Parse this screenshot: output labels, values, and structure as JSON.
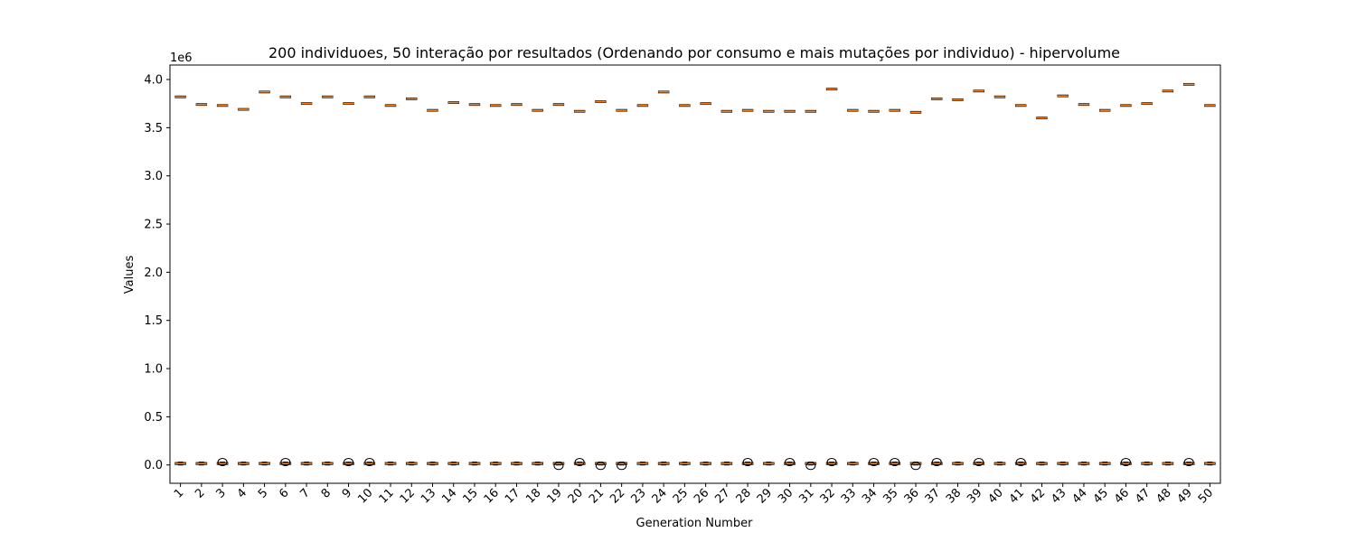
{
  "chart_data": {
    "type": "boxplot",
    "title": "200 individuoes, 50 interação por resultados (Ordenando por consumo e mais mutações por individuo) - hipervolume",
    "xlabel": "Generation Number",
    "ylabel": "Values",
    "y_scale_label": "1e6",
    "y_multiplier": 1000000,
    "ylim": [
      -0.19,
      4.15
    ],
    "y_ticks": [
      "0.0",
      "0.5",
      "1.0",
      "1.5",
      "2.0",
      "2.5",
      "3.0",
      "3.5",
      "4.0"
    ],
    "x_tick_rotation": -45,
    "categories": [
      "1",
      "2",
      "3",
      "4",
      "5",
      "6",
      "7",
      "8",
      "9",
      "10",
      "11",
      "12",
      "13",
      "14",
      "15",
      "16",
      "17",
      "18",
      "19",
      "20",
      "21",
      "22",
      "23",
      "24",
      "25",
      "26",
      "27",
      "28",
      "29",
      "30",
      "31",
      "32",
      "33",
      "34",
      "35",
      "36",
      "37",
      "38",
      "39",
      "40",
      "41",
      "42",
      "43",
      "44",
      "45",
      "46",
      "47",
      "48",
      "49",
      "50"
    ],
    "high_cluster_median": [
      3.82,
      3.74,
      3.73,
      3.69,
      3.87,
      3.82,
      3.75,
      3.82,
      3.75,
      3.82,
      3.73,
      3.8,
      3.68,
      3.76,
      3.74,
      3.73,
      3.74,
      3.68,
      3.74,
      3.67,
      3.77,
      3.68,
      3.73,
      3.87,
      3.73,
      3.75,
      3.67,
      3.68,
      3.67,
      3.67,
      3.67,
      3.9,
      3.68,
      3.67,
      3.68,
      3.66,
      3.8,
      3.79,
      3.88,
      3.82,
      3.73,
      3.6,
      3.83,
      3.74,
      3.68,
      3.73,
      3.75,
      3.88,
      3.95,
      3.73
    ],
    "low_cluster": {
      "q1": 0.005,
      "median": 0.015,
      "q3": 0.025,
      "whisker_low": 0.0,
      "whisker_high": 0.03
    },
    "outliers": {
      "3": [
        0.03
      ],
      "6": [
        0.03
      ],
      "9": [
        0.03
      ],
      "10": [
        0.03
      ],
      "19": [
        -0.01
      ],
      "20": [
        0.03
      ],
      "21": [
        -0.01
      ],
      "22": [
        -0.01
      ],
      "28": [
        0.03
      ],
      "30": [
        0.03
      ],
      "31": [
        -0.01
      ],
      "32": [
        0.03
      ],
      "34": [
        0.03
      ],
      "35": [
        0.03
      ],
      "36": [
        -0.01
      ],
      "37": [
        0.03
      ],
      "39": [
        0.03
      ],
      "41": [
        0.03
      ],
      "46": [
        0.03
      ],
      "49": [
        0.03
      ]
    },
    "colors": {
      "box": "#000000",
      "median": "#ff7f0e",
      "outlier": "#000000",
      "axes": "#000000",
      "background": "#ffffff"
    }
  }
}
